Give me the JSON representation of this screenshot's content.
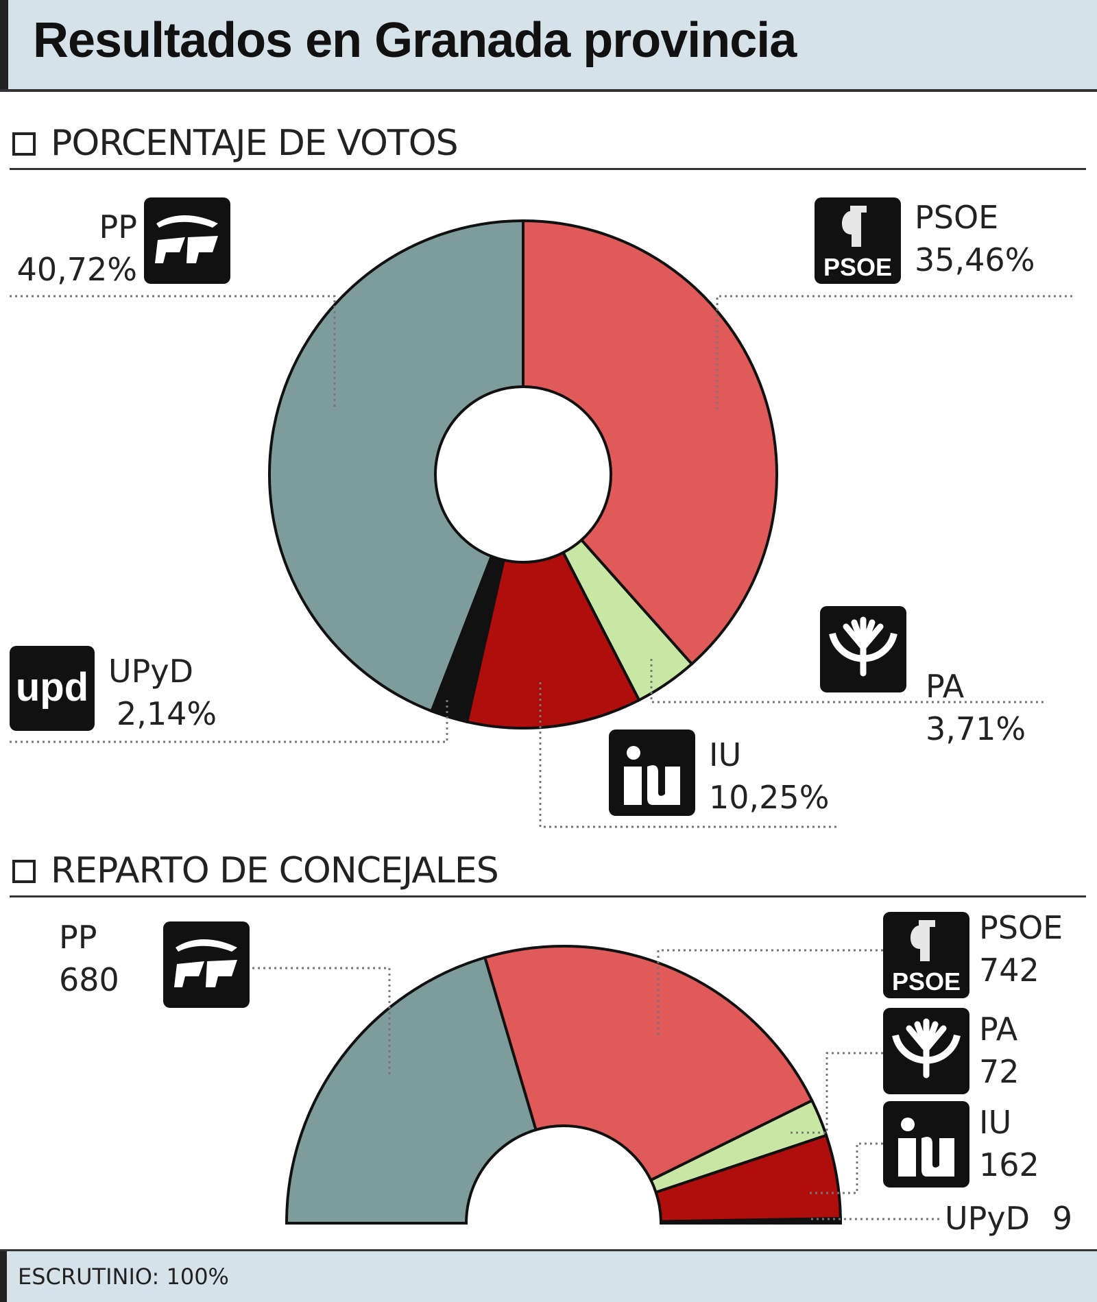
{
  "title": "Resultados en Granada provincia",
  "section_votes": "PORCENTAJE DE VOTOS",
  "section_seats": "REPARTO DE CONCEJALES",
  "footer": "ESCRUTINIO: 100%",
  "colors": {
    "PP": "#7f9c9c",
    "PSOE": "#e05a5a",
    "PA": "#c9e7a4",
    "IU": "#b00d0d",
    "UPyD": "#111111"
  },
  "votes": {
    "PP": {
      "name": "PP",
      "value": "40,72%"
    },
    "PSOE": {
      "name": "PSOE",
      "value": "35,46%"
    },
    "PA": {
      "name": "PA",
      "value": "3,71%"
    },
    "IU": {
      "name": "IU",
      "value": "10,25%"
    },
    "UPyD": {
      "name": "UPyD",
      "value": "2,14%"
    }
  },
  "seats": {
    "PP": {
      "name": "PP",
      "value": "680"
    },
    "PSOE": {
      "name": "PSOE",
      "value": "742"
    },
    "PA": {
      "name": "PA",
      "value": "72"
    },
    "IU": {
      "name": "IU",
      "value": "162"
    },
    "UPyD": {
      "name": "UPyD",
      "value": "9"
    }
  },
  "logos": {
    "PP": {
      "icon": "pp-logo"
    },
    "PSOE": {
      "icon": "psoe-logo",
      "text": "PSOE"
    },
    "PA": {
      "icon": "pa-logo"
    },
    "IU": {
      "icon": "iu-logo"
    },
    "UPyD": {
      "icon": "upyd-logo",
      "text": "upd"
    }
  },
  "chart_data": [
    {
      "type": "pie",
      "title": "PORCENTAJE DE VOTOS",
      "categories": [
        "PSOE",
        "PA",
        "IU",
        "UPyD",
        "PP"
      ],
      "values": [
        35.46,
        3.71,
        10.25,
        2.14,
        40.72
      ],
      "unit": "%"
    },
    {
      "type": "pie",
      "title": "REPARTO DE CONCEJALES",
      "categories": [
        "PP",
        "PSOE",
        "PA",
        "IU",
        "UPyD"
      ],
      "values": [
        680,
        742,
        72,
        162,
        9
      ]
    }
  ]
}
